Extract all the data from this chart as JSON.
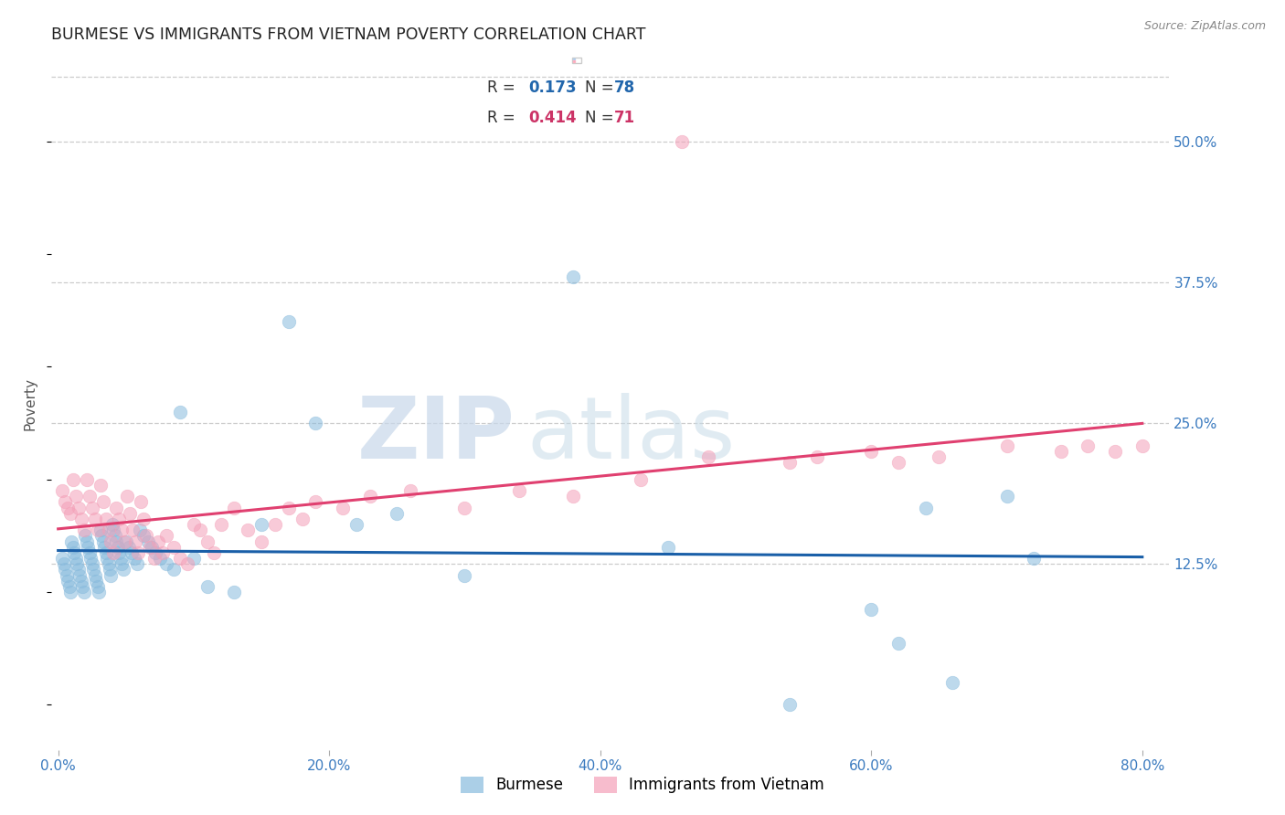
{
  "title": "BURMESE VS IMMIGRANTS FROM VIETNAM POVERTY CORRELATION CHART",
  "source": "Source: ZipAtlas.com",
  "ylabel": "Poverty",
  "xlim": [
    -0.005,
    0.82
  ],
  "ylim": [
    -0.04,
    0.575
  ],
  "xticks": [
    0.0,
    0.2,
    0.4,
    0.6,
    0.8
  ],
  "xtick_labels": [
    "0.0%",
    "20.0%",
    "40.0%",
    "60.0%",
    "80.0%"
  ],
  "yticks": [
    0.0,
    0.125,
    0.25,
    0.375,
    0.5
  ],
  "ytick_labels": [
    "",
    "12.5%",
    "25.0%",
    "37.5%",
    "50.0%"
  ],
  "grid_color": "#cccccc",
  "background_color": "#ffffff",
  "burmese_color": "#88bbdd",
  "burmese_line_color": "#1a5fa8",
  "vietnam_color": "#f4a0b8",
  "vietnam_line_color": "#e04070",
  "blue_text": "#2166ac",
  "pink_text": "#cc3366",
  "tick_color": "#3a7abf",
  "title_color": "#222222",
  "source_color": "#888888",
  "title_fontsize": 12.5,
  "tick_fontsize": 11,
  "axis_label_fontsize": 11,
  "burmese_R": "0.173",
  "burmese_N": "78",
  "vietnam_R": "0.414",
  "vietnam_N": "71",
  "burmese_label": "Burmese",
  "vietnam_label": "Immigrants from Vietnam",
  "burmese_x": [
    0.003,
    0.004,
    0.005,
    0.006,
    0.007,
    0.008,
    0.009,
    0.01,
    0.011,
    0.012,
    0.013,
    0.014,
    0.015,
    0.016,
    0.017,
    0.018,
    0.019,
    0.02,
    0.021,
    0.022,
    0.023,
    0.024,
    0.025,
    0.026,
    0.027,
    0.028,
    0.029,
    0.03,
    0.031,
    0.032,
    0.033,
    0.034,
    0.035,
    0.036,
    0.037,
    0.038,
    0.039,
    0.04,
    0.041,
    0.042,
    0.043,
    0.044,
    0.045,
    0.046,
    0.047,
    0.048,
    0.05,
    0.052,
    0.054,
    0.056,
    0.058,
    0.06,
    0.063,
    0.066,
    0.069,
    0.072,
    0.075,
    0.08,
    0.085,
    0.09,
    0.1,
    0.11,
    0.13,
    0.15,
    0.17,
    0.19,
    0.22,
    0.25,
    0.3,
    0.38,
    0.45,
    0.54,
    0.6,
    0.62,
    0.64,
    0.66,
    0.7,
    0.72
  ],
  "burmese_y": [
    0.13,
    0.125,
    0.12,
    0.115,
    0.11,
    0.105,
    0.1,
    0.145,
    0.14,
    0.135,
    0.13,
    0.125,
    0.12,
    0.115,
    0.11,
    0.105,
    0.1,
    0.15,
    0.145,
    0.14,
    0.135,
    0.13,
    0.125,
    0.12,
    0.115,
    0.11,
    0.105,
    0.1,
    0.155,
    0.15,
    0.145,
    0.14,
    0.135,
    0.13,
    0.125,
    0.12,
    0.115,
    0.16,
    0.155,
    0.15,
    0.145,
    0.14,
    0.135,
    0.13,
    0.125,
    0.12,
    0.145,
    0.14,
    0.135,
    0.13,
    0.125,
    0.155,
    0.15,
    0.145,
    0.14,
    0.135,
    0.13,
    0.125,
    0.12,
    0.26,
    0.13,
    0.105,
    0.1,
    0.16,
    0.34,
    0.25,
    0.16,
    0.17,
    0.115,
    0.38,
    0.14,
    0.0,
    0.085,
    0.055,
    0.175,
    0.02,
    0.185,
    0.13
  ],
  "vietnam_x": [
    0.003,
    0.005,
    0.007,
    0.009,
    0.011,
    0.013,
    0.015,
    0.017,
    0.019,
    0.021,
    0.023,
    0.025,
    0.027,
    0.029,
    0.031,
    0.033,
    0.035,
    0.037,
    0.039,
    0.041,
    0.043,
    0.045,
    0.047,
    0.049,
    0.051,
    0.053,
    0.055,
    0.057,
    0.059,
    0.061,
    0.063,
    0.065,
    0.068,
    0.071,
    0.074,
    0.077,
    0.08,
    0.085,
    0.09,
    0.095,
    0.1,
    0.105,
    0.11,
    0.115,
    0.12,
    0.13,
    0.14,
    0.15,
    0.16,
    0.17,
    0.18,
    0.19,
    0.21,
    0.23,
    0.26,
    0.3,
    0.34,
    0.38,
    0.43,
    0.48,
    0.54,
    0.6,
    0.65,
    0.7,
    0.74,
    0.76,
    0.78,
    0.8,
    0.46,
    0.56,
    0.62
  ],
  "vietnam_y": [
    0.19,
    0.18,
    0.175,
    0.17,
    0.2,
    0.185,
    0.175,
    0.165,
    0.155,
    0.2,
    0.185,
    0.175,
    0.165,
    0.155,
    0.195,
    0.18,
    0.165,
    0.155,
    0.145,
    0.135,
    0.175,
    0.165,
    0.155,
    0.145,
    0.185,
    0.17,
    0.155,
    0.145,
    0.135,
    0.18,
    0.165,
    0.15,
    0.14,
    0.13,
    0.145,
    0.135,
    0.15,
    0.14,
    0.13,
    0.125,
    0.16,
    0.155,
    0.145,
    0.135,
    0.16,
    0.175,
    0.155,
    0.145,
    0.16,
    0.175,
    0.165,
    0.18,
    0.175,
    0.185,
    0.19,
    0.175,
    0.19,
    0.185,
    0.2,
    0.22,
    0.215,
    0.225,
    0.22,
    0.23,
    0.225,
    0.23,
    0.225,
    0.23,
    0.5,
    0.22,
    0.215
  ]
}
